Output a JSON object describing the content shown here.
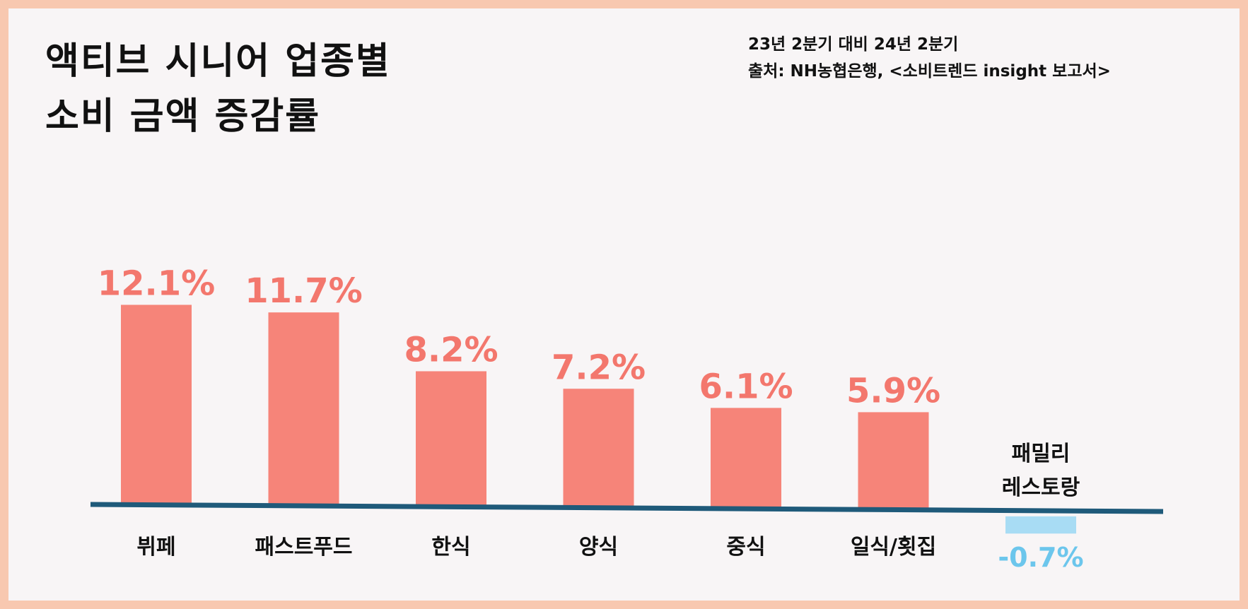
{
  "title_lines": [
    "액티브 시니어 업종별",
    "소비 금액 증감률"
  ],
  "subtitle": "23년 2분기 대비 24년 2분기",
  "source": "출처: NH농협은행, <소비트렌드 insight 보고서>",
  "colors": {
    "border": "#f8c8b0",
    "background": "#f8f5f6",
    "positive_bar": "#f68479",
    "positive_label": "#f3776d",
    "negative_bar": "#a8dcf4",
    "negative_label": "#6cc6ec",
    "baseline": "#1f5a7a"
  },
  "chart_data": {
    "type": "bar",
    "title": "액티브 시니어 업종별 소비 금액 증감률",
    "categories": [
      "뷔페",
      "패스트푸드",
      "한식",
      "양식",
      "중식",
      "일식/횟집",
      "패밀리 레스토랑"
    ],
    "category_lines": [
      [
        "뷔페"
      ],
      [
        "패스트푸드"
      ],
      [
        "한식"
      ],
      [
        "양식"
      ],
      [
        "중식"
      ],
      [
        "일식/횟집"
      ],
      [
        "패밀리",
        "레스토랑"
      ]
    ],
    "values": [
      12.1,
      11.7,
      8.2,
      7.2,
      6.1,
      5.9,
      -0.7
    ],
    "labels": [
      "12.1%",
      "11.7%",
      "8.2%",
      "7.2%",
      "6.1%",
      "5.9%",
      "-0.7%"
    ],
    "unit": "%",
    "ylim": [
      -0.7,
      12.1
    ],
    "grid": false,
    "legend": "none"
  }
}
